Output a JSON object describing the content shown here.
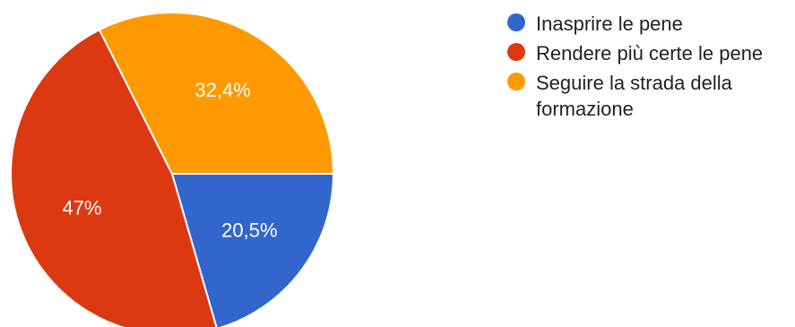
{
  "chart_data": {
    "type": "pie",
    "title": "",
    "categories": [
      "Inasprire le pene",
      "Rendere più certe le pene",
      "Seguire la strada della formazione"
    ],
    "values": [
      20.5,
      47,
      32.4
    ],
    "labels": [
      "20,5%",
      "47%",
      "32,4%"
    ],
    "colors": [
      "#3366cc",
      "#dc3912",
      "#ff9900"
    ],
    "legend_position": "right"
  },
  "legend": {
    "items": [
      {
        "label": "Inasprire le pene",
        "color": "#3366cc"
      },
      {
        "label": "Rendere più certe le pene",
        "color": "#dc3912"
      },
      {
        "label": "Seguire la strada della formazione",
        "color": "#ff9900"
      }
    ]
  }
}
